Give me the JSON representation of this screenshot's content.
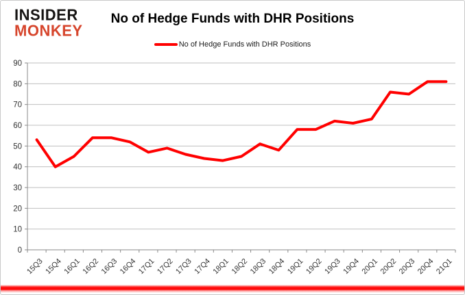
{
  "logo": {
    "line1": "INSIDER",
    "line2": "MONKEY"
  },
  "header": {
    "title": "No of Hedge Funds with DHR Positions"
  },
  "legend": {
    "label": "No of Hedge Funds with DHR Positions",
    "line_color": "#ff0000"
  },
  "colors": {
    "series_line": "#ff0000",
    "gridline": "#bfbfbf",
    "axis": "#898989",
    "tick_label": "#333333",
    "logo_red": "#d6452c",
    "bottom_bar": "#ff0000"
  },
  "chart_data": {
    "type": "line",
    "title": "No of Hedge Funds with DHR Positions",
    "categories": [
      "15Q3",
      "15Q4",
      "16Q1",
      "16Q2",
      "16Q3",
      "16Q4",
      "17Q1",
      "17Q2",
      "17Q3",
      "17Q4",
      "18Q1",
      "18Q2",
      "18Q3",
      "18Q4",
      "19Q1",
      "19Q2",
      "19Q3",
      "19Q4",
      "20Q1",
      "20Q2",
      "20Q3",
      "20Q4",
      "21Q1"
    ],
    "series": [
      {
        "name": "No of Hedge Funds with DHR Positions",
        "color": "#ff0000",
        "values": [
          53,
          40,
          45,
          54,
          54,
          52,
          47,
          49,
          46,
          44,
          43,
          45,
          51,
          48,
          58,
          58,
          62,
          61,
          63,
          76,
          75,
          81,
          81
        ]
      }
    ],
    "xlabel": "",
    "ylabel": "",
    "ylim": [
      0,
      90
    ],
    "yticks": [
      0,
      10,
      20,
      30,
      40,
      50,
      60,
      70,
      80,
      90
    ],
    "grid": "horizontal",
    "legend_position": "top"
  }
}
